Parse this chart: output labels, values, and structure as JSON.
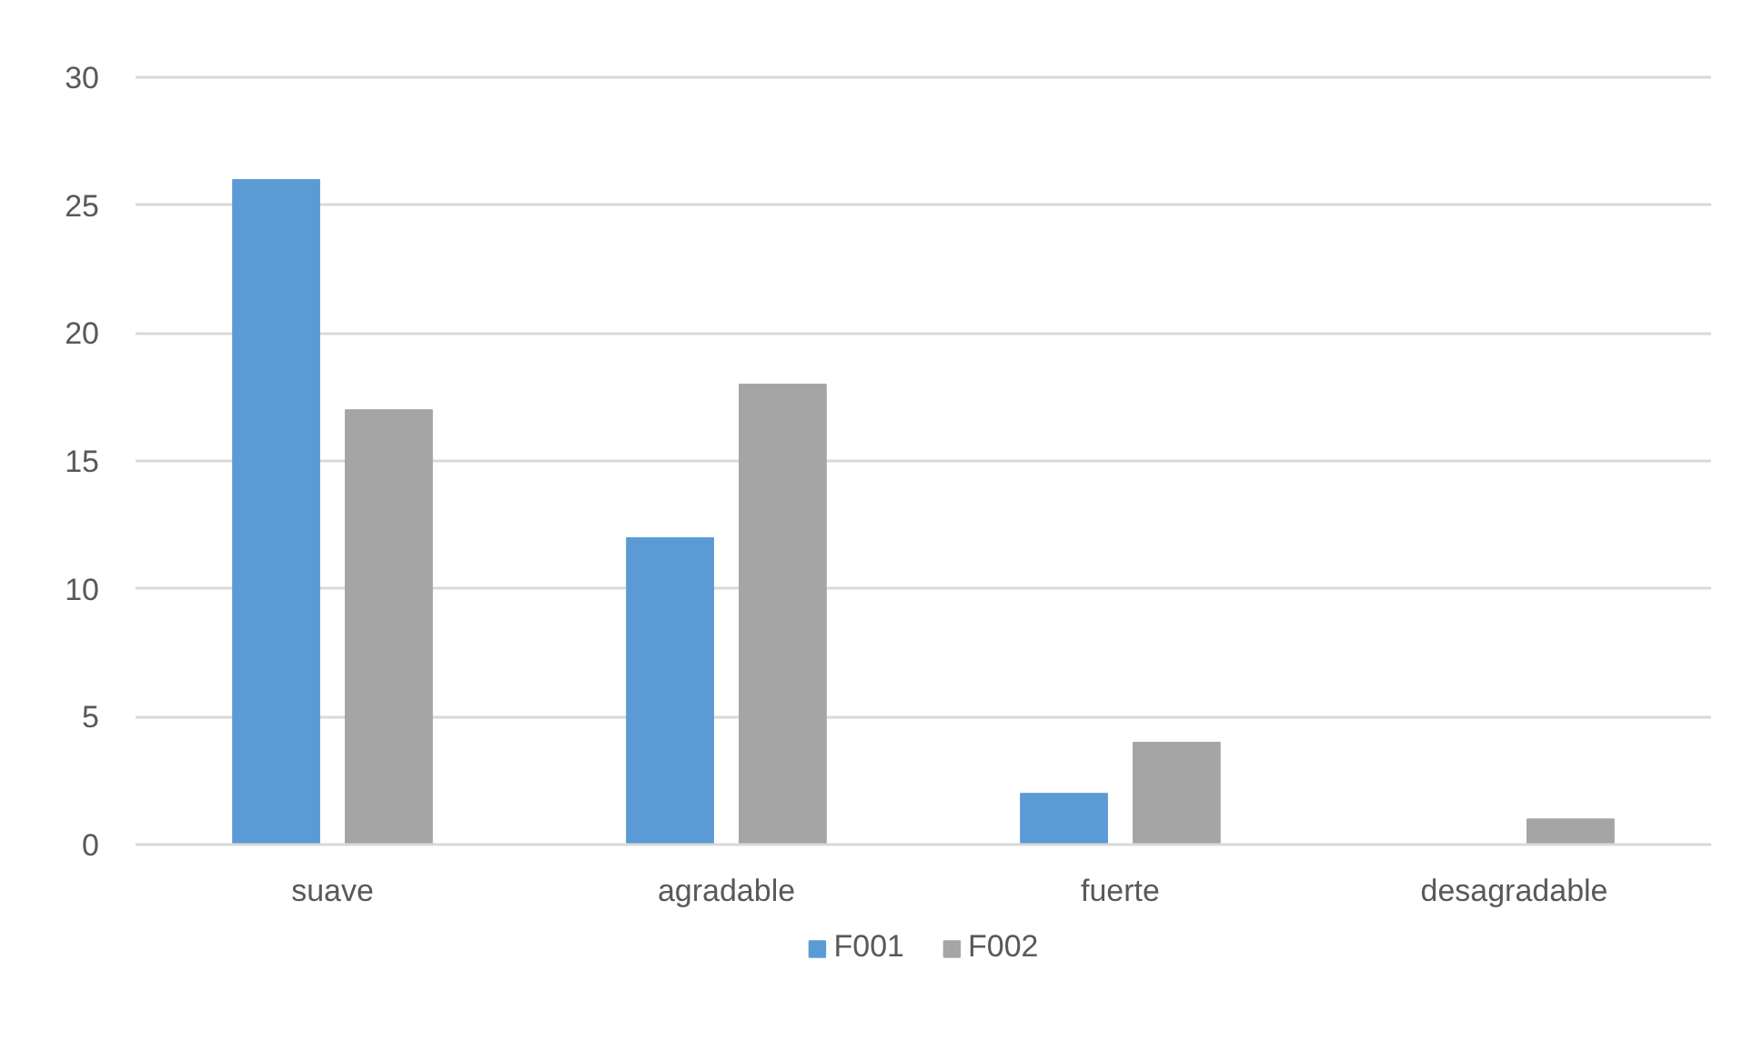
{
  "chart_data": {
    "type": "bar",
    "categories": [
      "suave",
      "agradable",
      "fuerte",
      "desagradable"
    ],
    "series": [
      {
        "name": "F001",
        "color": "#5b9bd5",
        "values": [
          26,
          12,
          2,
          0
        ]
      },
      {
        "name": "F002",
        "color": "#a5a5a5",
        "values": [
          17,
          18,
          4,
          1
        ]
      }
    ],
    "ylim": [
      0,
      30
    ],
    "yticks": [
      0,
      5,
      10,
      15,
      20,
      25,
      30
    ],
    "grid": "y",
    "legend": "bottom"
  }
}
